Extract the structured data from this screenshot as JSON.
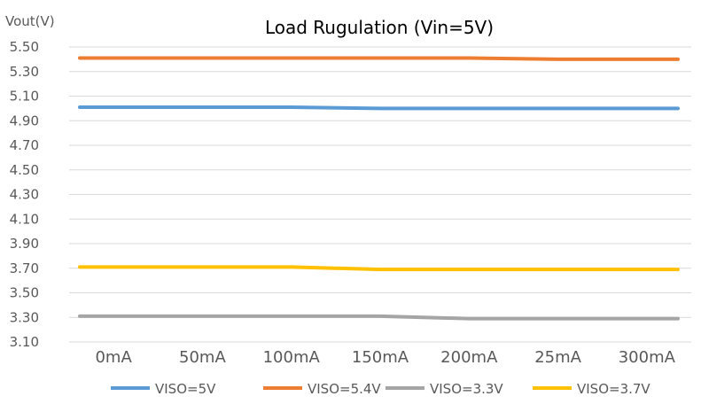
{
  "chart_data": {
    "type": "line",
    "title": "Load Rugulation (Vin=5V)",
    "ylabel": "Vout(V)",
    "xlabel": "",
    "categories": [
      "0mA",
      "50mA",
      "100mA",
      "150mA",
      "200mA",
      "25mA",
      "300mA"
    ],
    "ylim": [
      3.1,
      5.5
    ],
    "yticks": [
      "5.50",
      "5.30",
      "5.10",
      "4.90",
      "4.70",
      "4.50",
      "4.30",
      "4.10",
      "3.90",
      "3.70",
      "3.50",
      "3.30",
      "3.10"
    ],
    "grid": true,
    "legend_position": "bottom",
    "series": [
      {
        "name": "VISO=5V",
        "color": "#5b9bd5",
        "values": [
          5.01,
          5.01,
          5.01,
          5.0,
          5.0,
          5.0,
          5.0
        ]
      },
      {
        "name": "VISO=5.4V",
        "color": "#ed7d31",
        "values": [
          5.41,
          5.41,
          5.41,
          5.41,
          5.41,
          5.4,
          5.4
        ]
      },
      {
        "name": "VISO=3.3V",
        "color": "#a5a5a5",
        "values": [
          3.31,
          3.31,
          3.31,
          3.31,
          3.29,
          3.29,
          3.29
        ]
      },
      {
        "name": "VISO=3.7V",
        "color": "#ffc000",
        "values": [
          3.71,
          3.71,
          3.71,
          3.69,
          3.69,
          3.69,
          3.69
        ]
      }
    ]
  }
}
